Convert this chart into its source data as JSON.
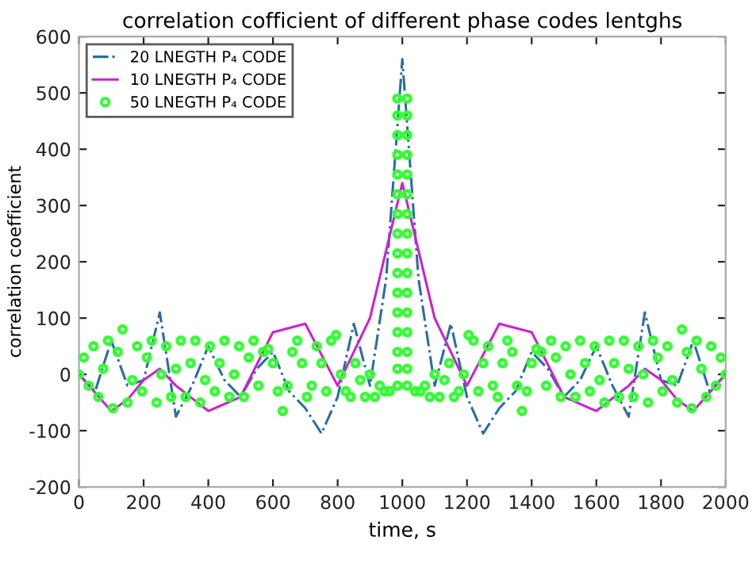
{
  "chart_data": {
    "type": "line",
    "title": "correlation cofficient of different phase codes lentghs",
    "xlabel": "time, s",
    "ylabel": "correlation coefficient",
    "xlim": [
      0,
      2000
    ],
    "xticks": [
      0,
      200,
      400,
      600,
      800,
      1000,
      1200,
      1400,
      1600,
      1800,
      2000
    ],
    "ylim": [
      -200,
      600
    ],
    "yticks": [
      -200,
      -100,
      0,
      100,
      200,
      300,
      400,
      500,
      600
    ],
    "grid": false,
    "legend": "top left",
    "series": [
      {
        "name": "20 LNEGTH P₄ CODE",
        "color": "#2b6ca3",
        "line_style": "dashed",
        "x": [
          0,
          50,
          100,
          150,
          200,
          250,
          300,
          350,
          400,
          450,
          500,
          550,
          600,
          650,
          700,
          750,
          800,
          850,
          900,
          950,
          1000,
          1050,
          1100,
          1150,
          1200,
          1250,
          1300,
          1350,
          1400,
          1450,
          1500,
          1550,
          1600,
          1650,
          1700,
          1750,
          1800,
          1850,
          1900,
          1950,
          2000
        ],
        "values": [
          0,
          -30,
          60,
          -20,
          -10,
          110,
          -75,
          -20,
          50,
          -10,
          -40,
          10,
          40,
          -30,
          -60,
          -105,
          -40,
          90,
          -20,
          170,
          560,
          170,
          -20,
          90,
          -40,
          -105,
          -60,
          -30,
          40,
          10,
          -40,
          -10,
          50,
          -20,
          -75,
          110,
          -10,
          -20,
          60,
          -30,
          0
        ]
      },
      {
        "name": "10 LNEGTH P₄ CODE",
        "color": "#cc22cc",
        "line_style": "solid",
        "x": [
          0,
          100,
          150,
          200,
          250,
          300,
          400,
          500,
          600,
          700,
          800,
          900,
          950,
          1000,
          1050,
          1100,
          1200,
          1300,
          1400,
          1500,
          1600,
          1700,
          1750,
          1800,
          1850,
          1900,
          2000
        ],
        "values": [
          0,
          -65,
          -45,
          -10,
          10,
          -20,
          -65,
          -40,
          75,
          90,
          -20,
          100,
          220,
          340,
          220,
          100,
          -20,
          90,
          75,
          -40,
          -65,
          -20,
          10,
          -10,
          -45,
          -65,
          0
        ]
      },
      {
        "name": "50 LNEGTH P₄ CODE",
        "type": "scatter",
        "marker": "circle",
        "color": "#33ff33",
        "x": [
          0,
          15,
          30,
          45,
          60,
          75,
          90,
          105,
          120,
          135,
          150,
          165,
          180,
          195,
          210,
          225,
          240,
          255,
          270,
          285,
          300,
          315,
          330,
          345,
          360,
          375,
          390,
          405,
          420,
          435,
          450,
          465,
          480,
          495,
          510,
          525,
          540,
          555,
          570,
          585,
          600,
          615,
          630,
          645,
          660,
          675,
          690,
          705,
          720,
          735,
          750,
          765,
          780,
          795,
          810,
          825,
          840,
          855,
          870,
          885,
          900,
          915,
          930,
          945,
          960,
          985,
          985,
          985,
          985,
          985,
          985,
          985,
          985,
          985,
          985,
          985,
          985,
          985,
          985,
          985,
          985,
          1015,
          1015,
          1015,
          1015,
          1015,
          1015,
          1015,
          1015,
          1015,
          1015,
          1015,
          1015,
          1015,
          1015,
          1015,
          1015,
          1040,
          1055,
          1070,
          1085,
          1100,
          1115,
          1130,
          1145,
          1160,
          1175,
          1190,
          1205,
          1220,
          1235,
          1250,
          1265,
          1280,
          1295,
          1310,
          1325,
          1340,
          1355,
          1370,
          1385,
          1400,
          1415,
          1430,
          1445,
          1460,
          1475,
          1490,
          1505,
          1520,
          1535,
          1550,
          1565,
          1580,
          1595,
          1610,
          1625,
          1640,
          1655,
          1670,
          1685,
          1700,
          1715,
          1730,
          1745,
          1760,
          1775,
          1790,
          1805,
          1820,
          1835,
          1850,
          1865,
          1880,
          1895,
          1910,
          1925,
          1940,
          1955,
          1970,
          1985,
          2000
        ],
        "values": [
          0,
          30,
          -20,
          50,
          -40,
          10,
          60,
          -60,
          40,
          80,
          -50,
          -10,
          50,
          -30,
          30,
          60,
          -50,
          0,
          50,
          -40,
          10,
          60,
          -40,
          20,
          60,
          -50,
          -10,
          50,
          -30,
          20,
          60,
          -40,
          0,
          50,
          -40,
          30,
          60,
          -20,
          40,
          45,
          20,
          -30,
          -65,
          -20,
          40,
          60,
          20,
          -40,
          -20,
          50,
          20,
          -30,
          60,
          70,
          0,
          -30,
          -40,
          20,
          -10,
          -40,
          0,
          -40,
          -20,
          -30,
          -30,
          -20,
          10,
          40,
          75,
          110,
          145,
          180,
          215,
          250,
          285,
          320,
          355,
          390,
          425,
          460,
          490,
          -20,
          10,
          40,
          75,
          110,
          145,
          180,
          215,
          250,
          285,
          320,
          355,
          390,
          425,
          460,
          490,
          -30,
          -30,
          -20,
          -40,
          0,
          -40,
          -10,
          20,
          -40,
          -30,
          0,
          70,
          60,
          -30,
          20,
          50,
          -20,
          -40,
          20,
          60,
          40,
          -20,
          -65,
          -30,
          20,
          45,
          40,
          -20,
          60,
          30,
          -40,
          50,
          0,
          -40,
          60,
          20,
          -30,
          50,
          -10,
          -50,
          60,
          20,
          -40,
          60,
          10,
          -40,
          50,
          0,
          -50,
          60,
          30,
          -30,
          50,
          -10,
          -50,
          80,
          40,
          -60,
          60,
          10,
          -40,
          50,
          -20,
          30,
          0
        ]
      }
    ]
  }
}
